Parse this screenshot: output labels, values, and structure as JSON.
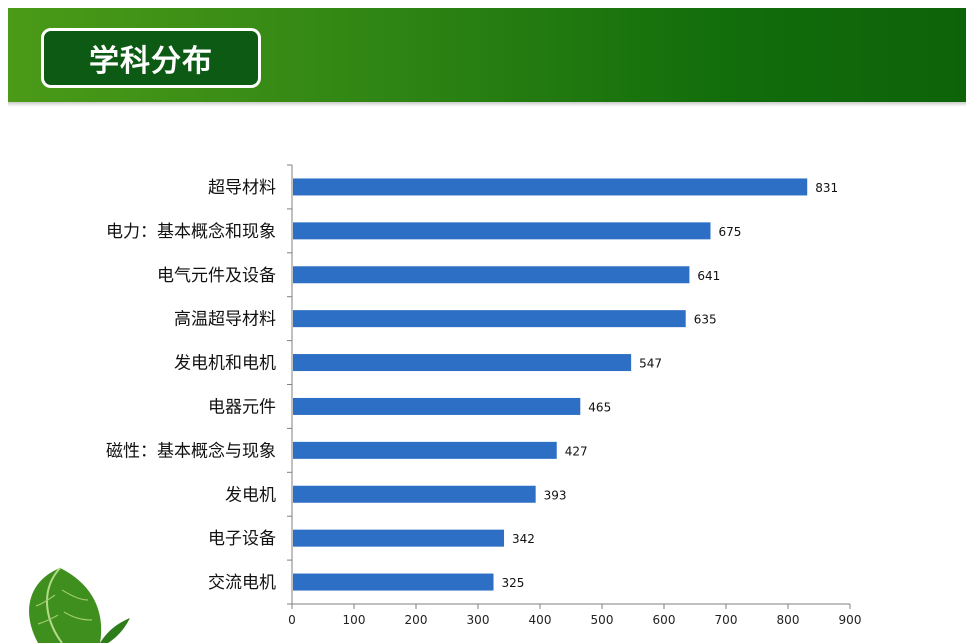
{
  "header": {
    "title": "学科分布"
  },
  "colors": {
    "bar": "#2e6fc6",
    "axis": "#808080"
  },
  "chart_data": {
    "type": "bar",
    "orientation": "horizontal",
    "title": "",
    "xlabel": "",
    "ylabel": "",
    "categories": [
      "超导材料",
      "电力：基本概念和现象",
      "电气元件及设备",
      "高温超导材料",
      "发电机和电机",
      "电器元件",
      "磁性：基本概念与现象",
      "发电机",
      "电子设备",
      "交流电机"
    ],
    "values": [
      831,
      675,
      641,
      635,
      547,
      465,
      427,
      393,
      342,
      325
    ],
    "xlim": [
      0,
      900
    ],
    "xticks": [
      0,
      100,
      200,
      300,
      400,
      500,
      600,
      700,
      800,
      900
    ],
    "grid": false,
    "legend": "none"
  }
}
